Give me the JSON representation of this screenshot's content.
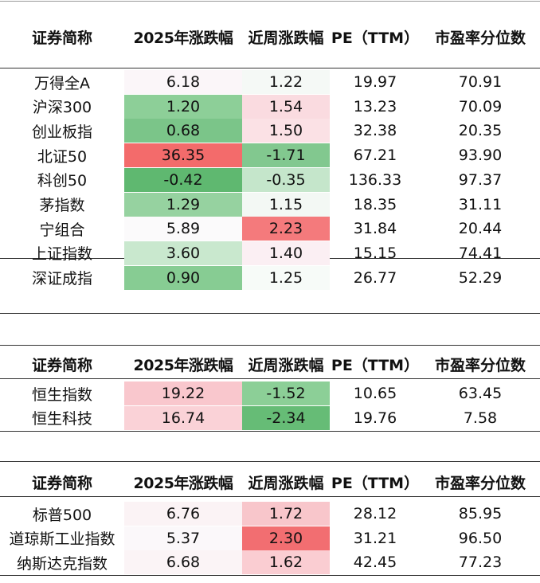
{
  "columns": [
    "证券简称",
    "2025年涨跌幅",
    "近周涨跌幅",
    "PE（TTM）",
    "市盈率分位数"
  ],
  "colors": {
    "positive_strong": "#f36b6b",
    "negative_strong": "#5db86e",
    "neutral": "#ffffff"
  },
  "tables": [
    {
      "rows": [
        {
          "name": "万得全A",
          "ytd": "6.18",
          "week": "1.22",
          "pe": "19.97",
          "pct": "70.91",
          "ytd_bg": "#fbf6f9",
          "week_bg": "#f5f9f6"
        },
        {
          "name": "沪深300",
          "ytd": "1.20",
          "week": "1.54",
          "pe": "13.23",
          "pct": "70.09",
          "ytd_bg": "#8dcf98",
          "week_bg": "#fadbe0"
        },
        {
          "name": "创业板指",
          "ytd": "0.68",
          "week": "1.50",
          "pe": "32.38",
          "pct": "20.35",
          "ytd_bg": "#7bc589",
          "week_bg": "#fbe1e5"
        },
        {
          "name": "北证50",
          "ytd": "36.35",
          "week": "-1.71",
          "pe": "67.21",
          "pct": "93.90",
          "ytd_bg": "#f36b6b",
          "week_bg": "#82c88f"
        },
        {
          "name": "科创50",
          "ytd": "-0.42",
          "week": "-0.35",
          "pe": "136.33",
          "pct": "97.37",
          "ytd_bg": "#5fb870",
          "week_bg": "#c5e6cb"
        },
        {
          "name": "茅指数",
          "ytd": "1.29",
          "week": "1.15",
          "pe": "18.35",
          "pct": "31.11",
          "ytd_bg": "#96d2a0",
          "week_bg": "#f3f8f4"
        },
        {
          "name": "宁组合",
          "ytd": "5.89",
          "week": "2.23",
          "pe": "31.84",
          "pct": "20.44",
          "ytd_bg": "#fbfafb",
          "week_bg": "#f47a7c"
        },
        {
          "name": "上证指数",
          "ytd": "3.60",
          "week": "1.40",
          "pe": "15.15",
          "pct": "74.41",
          "ytd_bg": "#c9e8ce",
          "week_bg": "#fbeff3"
        },
        {
          "name": "深证成指",
          "ytd": "0.90",
          "week": "1.25",
          "pe": "26.77",
          "pct": "52.29",
          "ytd_bg": "#87cc93",
          "week_bg": "#f7fbf8"
        }
      ]
    },
    {
      "rows": [
        {
          "name": "恒生指数",
          "ytd": "19.22",
          "week": "-1.52",
          "pe": "10.65",
          "pct": "63.45",
          "ytd_bg": "#f9c7cd",
          "week_bg": "#8ccf97"
        },
        {
          "name": "恒生科技",
          "ytd": "16.74",
          "week": "-2.34",
          "pe": "19.76",
          "pct": "7.58",
          "ytd_bg": "#fad2d7",
          "week_bg": "#66bc76"
        }
      ]
    },
    {
      "rows": [
        {
          "name": "标普500",
          "ytd": "6.76",
          "week": "1.72",
          "pe": "28.12",
          "pct": "85.95",
          "ytd_bg": "#fbf3f5",
          "week_bg": "#f8c6cb"
        },
        {
          "name": "道琼斯工业指数",
          "ytd": "5.37",
          "week": "2.30",
          "pe": "31.21",
          "pct": "96.50",
          "ytd_bg": "#fbf8fa",
          "week_bg": "#f26e71"
        },
        {
          "name": "纳斯达克指数",
          "ytd": "6.68",
          "week": "1.62",
          "pe": "42.45",
          "pct": "77.23",
          "ytd_bg": "#fbf4f6",
          "week_bg": "#facdd2"
        }
      ]
    }
  ]
}
